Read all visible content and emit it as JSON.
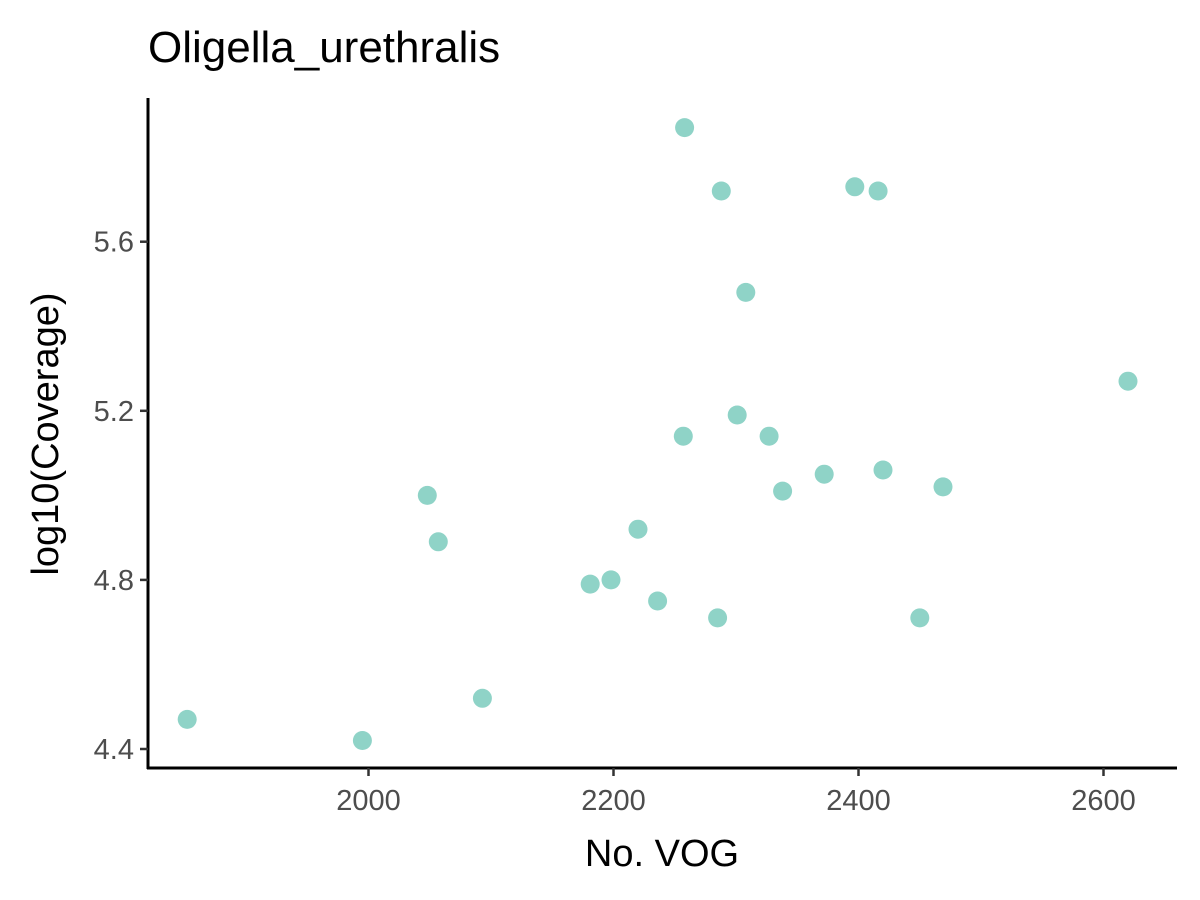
{
  "chart_data": {
    "type": "scatter",
    "title": "Oligella_urethralis",
    "xlabel": "No. VOG",
    "ylabel": "log10(Coverage)",
    "xlim": [
      1820,
      2660
    ],
    "ylim": [
      4.355,
      5.94
    ],
    "x_ticks": [
      2000,
      2200,
      2400,
      2600
    ],
    "y_ticks": [
      4.4,
      4.8,
      5.2,
      5.6
    ],
    "x_tick_labels": [
      "2000",
      "2200",
      "2400",
      "2600"
    ],
    "y_tick_labels": [
      "4.4",
      "4.8",
      "5.2",
      "5.6"
    ],
    "grid": false,
    "legend": "none",
    "point_color": "#8fd3c7",
    "series": [
      {
        "points": [
          {
            "x": 1852,
            "y": 4.47
          },
          {
            "x": 1995,
            "y": 4.42
          },
          {
            "x": 2048,
            "y": 5.0
          },
          {
            "x": 2057,
            "y": 4.89
          },
          {
            "x": 2093,
            "y": 4.52
          },
          {
            "x": 2181,
            "y": 4.79
          },
          {
            "x": 2198,
            "y": 4.8
          },
          {
            "x": 2220,
            "y": 4.92
          },
          {
            "x": 2236,
            "y": 4.75
          },
          {
            "x": 2257,
            "y": 5.14
          },
          {
            "x": 2258,
            "y": 5.87
          },
          {
            "x": 2285,
            "y": 4.71
          },
          {
            "x": 2288,
            "y": 5.72
          },
          {
            "x": 2301,
            "y": 5.19
          },
          {
            "x": 2308,
            "y": 5.48
          },
          {
            "x": 2327,
            "y": 5.14
          },
          {
            "x": 2338,
            "y": 5.01
          },
          {
            "x": 2372,
            "y": 5.05
          },
          {
            "x": 2397,
            "y": 5.73
          },
          {
            "x": 2416,
            "y": 5.72
          },
          {
            "x": 2420,
            "y": 5.06
          },
          {
            "x": 2450,
            "y": 4.71
          },
          {
            "x": 2469,
            "y": 5.02
          },
          {
            "x": 2620,
            "y": 5.27
          }
        ]
      }
    ]
  }
}
